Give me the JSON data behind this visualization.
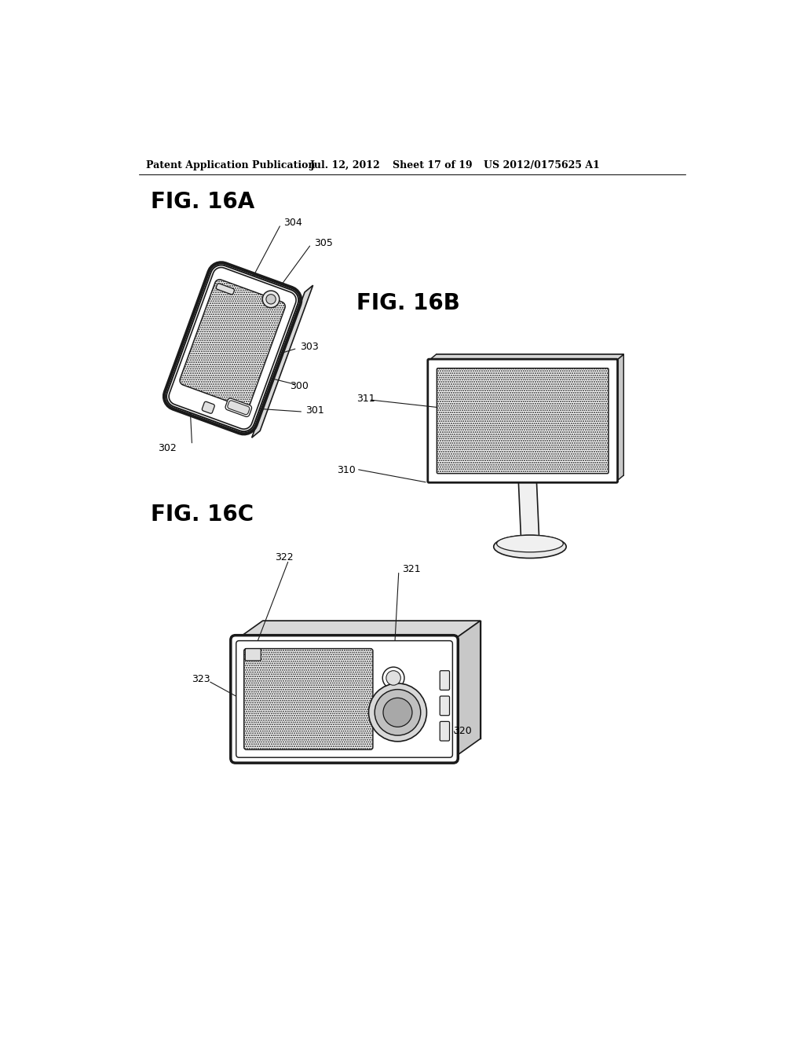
{
  "bg_color": "#ffffff",
  "line_color": "#1a1a1a",
  "line_width": 1.5,
  "header_text": "Patent Application Publication",
  "header_date": "Jul. 12, 2012",
  "header_sheet": "Sheet 17 of 19",
  "header_patent": "US 2012/0175625 A1",
  "fig16a_label": "FIG. 16A",
  "fig16b_label": "FIG. 16B",
  "fig16c_label": "FIG. 16C"
}
